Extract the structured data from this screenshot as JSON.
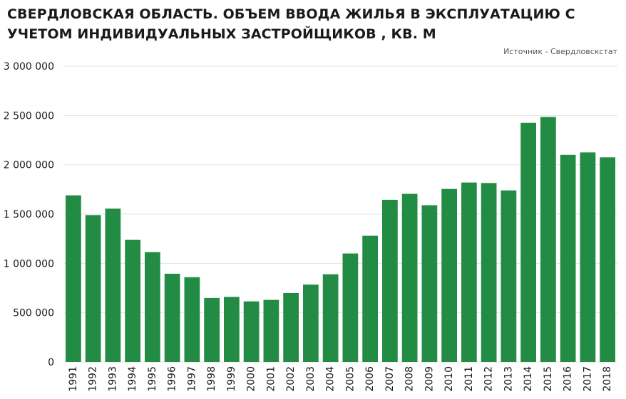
{
  "header": {
    "title": "СВЕРДЛОВСКАЯ ОБЛАСТЬ. ОБЪЕМ ВВОДА ЖИЛЬЯ В ЭКСПЛУАТАЦИЮ С УЧЕТОМ ИНДИВИДУАЛЬНЫХ ЗАСТРОЙЩИКОВ , КВ. М",
    "source": "Источник - Свердловскстат"
  },
  "colors": {
    "bar": "#238c44",
    "grid": "#e4e4e4"
  },
  "chart_data": {
    "type": "bar",
    "title": "СВЕРДЛОВСКАЯ ОБЛАСТЬ. ОБЪЕМ ВВОДА ЖИЛЬЯ В ЭКСПЛУАТАЦИЮ С УЧЕТОМ ИНДИВИДУАЛЬНЫХ ЗАСТРОЙЩИКОВ , КВ. М",
    "xlabel": "",
    "ylabel": "",
    "categories": [
      "1991",
      "1992",
      "1993",
      "1994",
      "1995",
      "1996",
      "1997",
      "1998",
      "1999",
      "2000",
      "2001",
      "2002",
      "2003",
      "2004",
      "2005",
      "2006",
      "2007",
      "2008",
      "2009",
      "2010",
      "2011",
      "2012",
      "2013",
      "2014",
      "2015",
      "2016",
      "2017",
      "2018"
    ],
    "values": [
      1690000,
      1490000,
      1555000,
      1240000,
      1115000,
      895000,
      860000,
      650000,
      660000,
      615000,
      630000,
      700000,
      785000,
      890000,
      1100000,
      1280000,
      1645000,
      1705000,
      1590000,
      1755000,
      1820000,
      1815000,
      1740000,
      2425000,
      2485000,
      2100000,
      2125000,
      2075000
    ],
    "ylim": [
      0,
      3000000
    ],
    "yticks": [
      0,
      500000,
      1000000,
      1500000,
      2000000,
      2500000,
      3000000
    ],
    "ytick_labels": [
      "0",
      "500 000",
      "1 000 000",
      "1 500 000",
      "2 000 000",
      "2 500 000",
      "3 000 000"
    ],
    "grid": true,
    "legend": "none"
  }
}
